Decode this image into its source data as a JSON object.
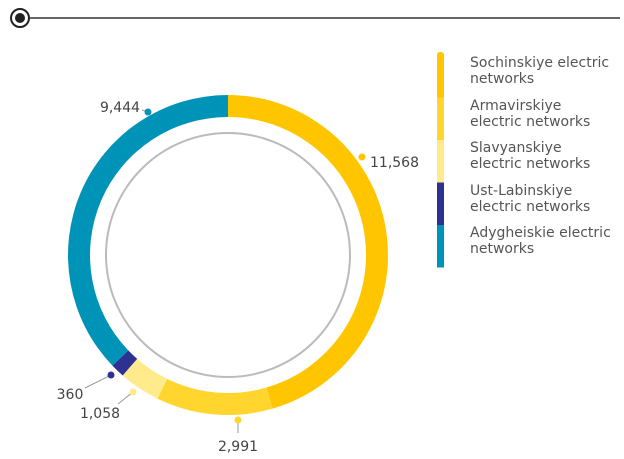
{
  "chart_data": {
    "type": "donut",
    "categories": [
      "Sochinskiye electric networks",
      "Armavirskiye electric networks",
      "Slavyanskiye electric networks",
      "Ust-Labinskiye electric networks",
      "Adygheiskie electric networks"
    ],
    "values": [
      11568,
      2991,
      1058,
      360,
      9444
    ],
    "value_labels": [
      "11,568",
      "2,991",
      "1,058",
      "360",
      "9,444"
    ],
    "colors": [
      "#ffc600",
      "#ffd52e",
      "#ffeb8c",
      "#2e3192",
      "#0093b8"
    ]
  }
}
